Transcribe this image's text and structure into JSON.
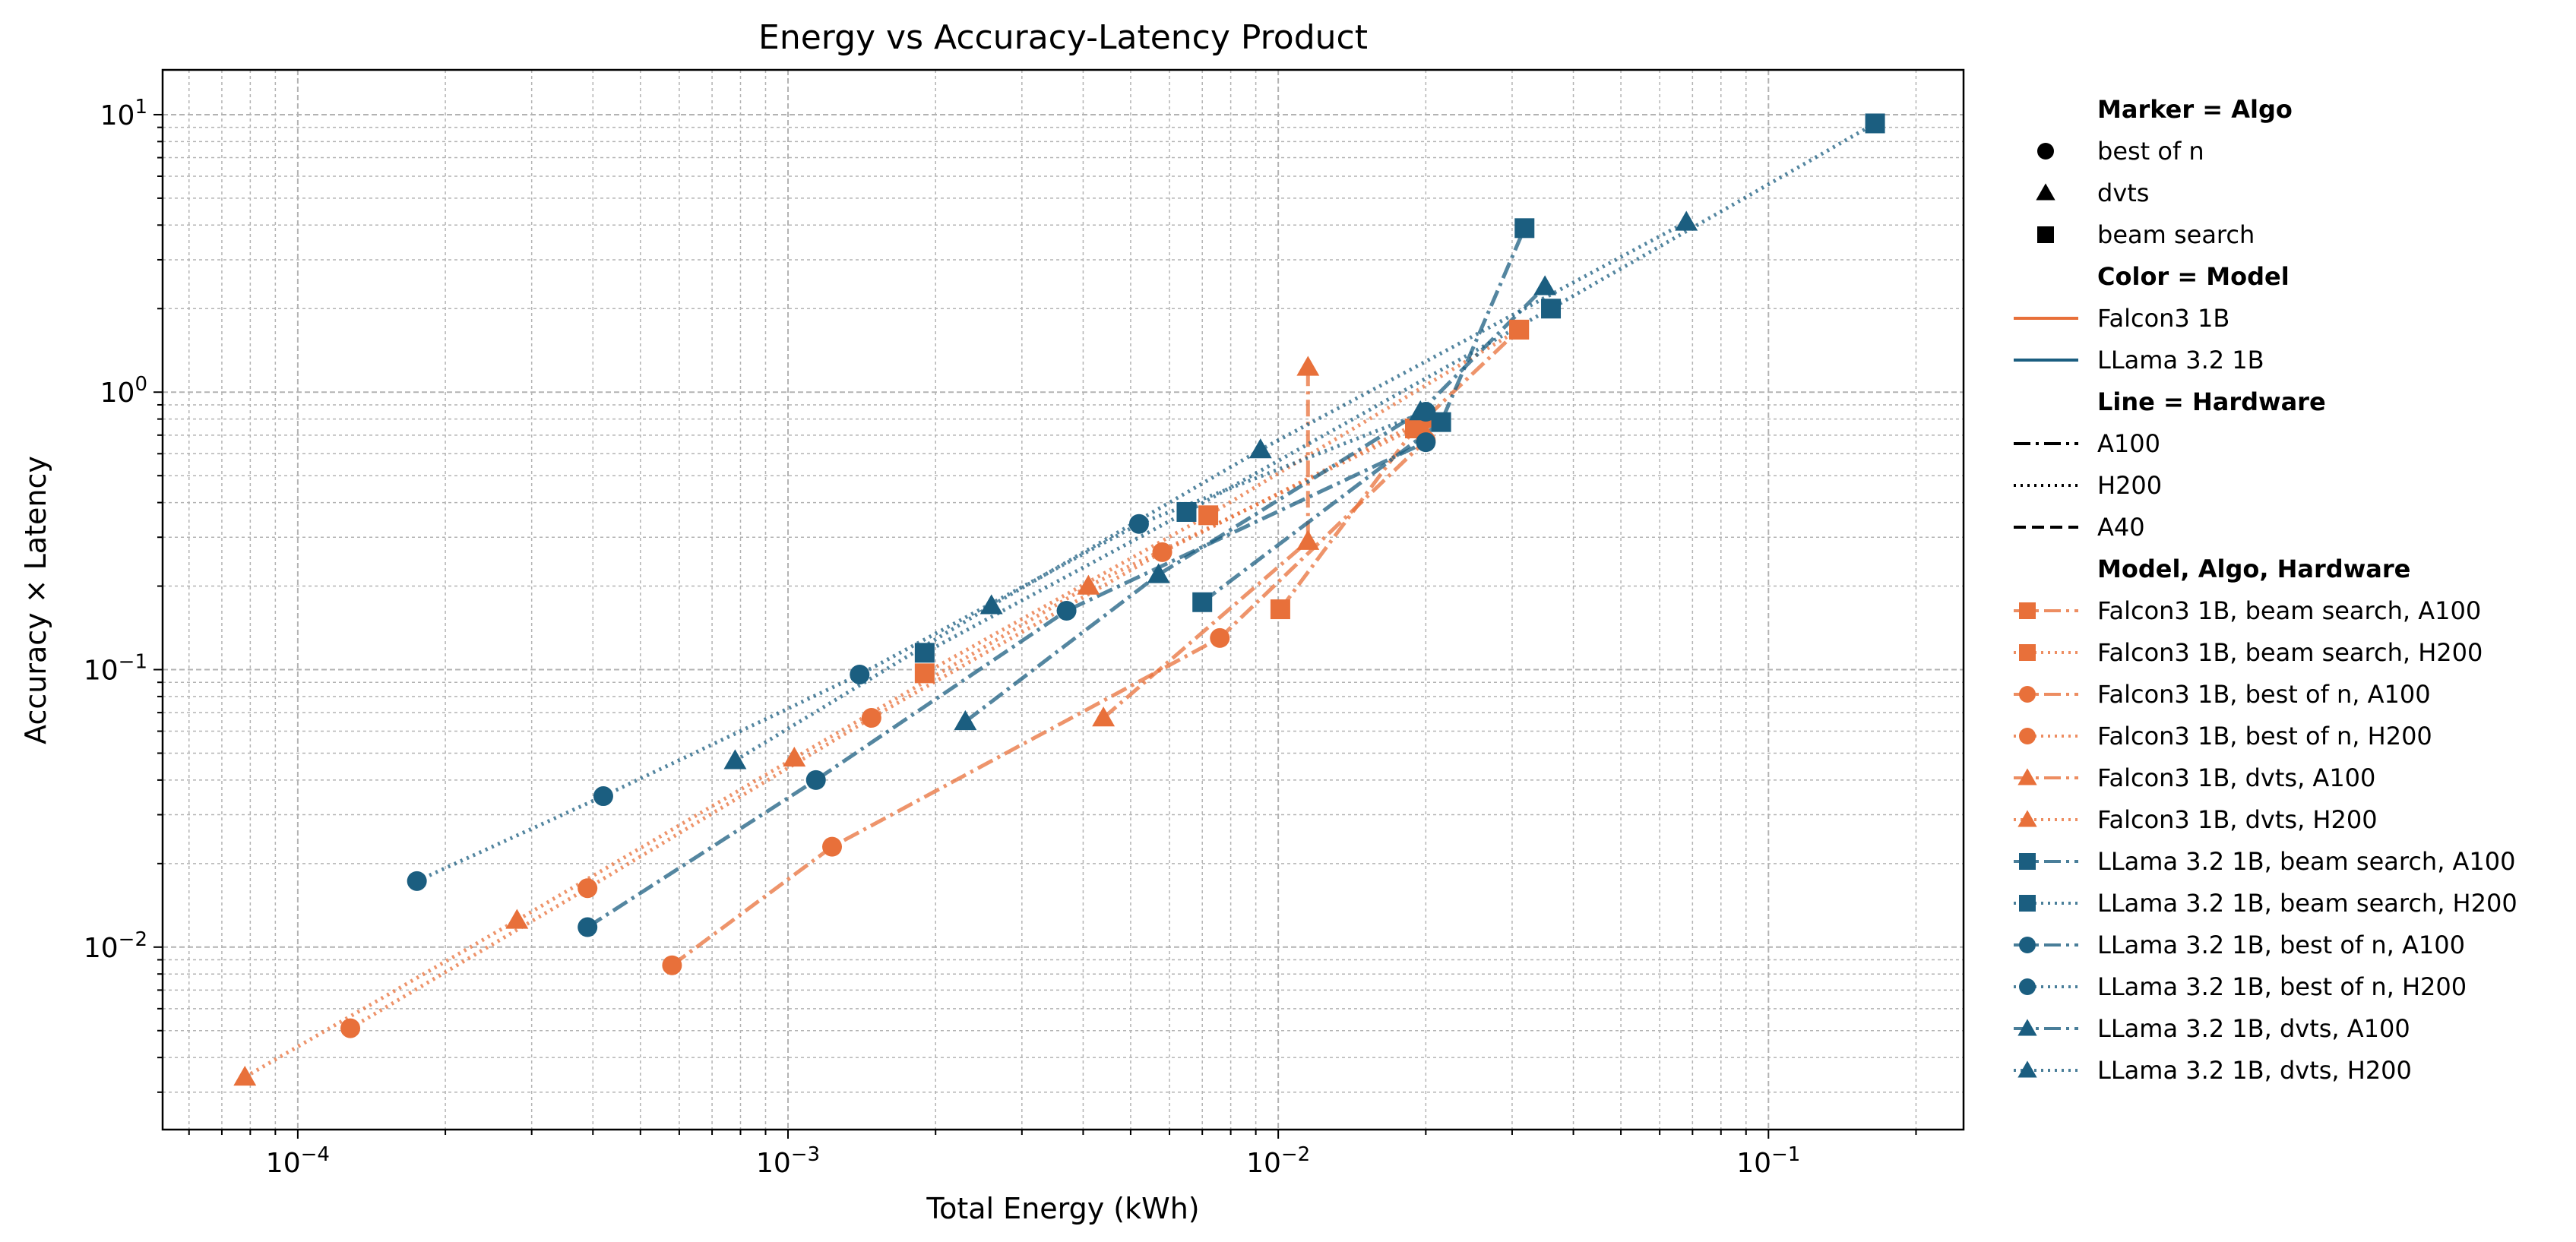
{
  "chart_data": {
    "type": "scatter",
    "title": "Energy vs Accuracy-Latency Product",
    "xlabel": "Total Energy (kWh)",
    "ylabel": "Accuracy × Latency",
    "x_scale": "log",
    "y_scale": "log",
    "xlim": [
      5.3e-05,
      0.25
    ],
    "ylim": [
      0.0022,
      14.5
    ],
    "grid": true,
    "x_ticks": [
      {
        "value": 0.0001,
        "base": "10",
        "exp": "−4"
      },
      {
        "value": 0.001,
        "base": "10",
        "exp": "−3"
      },
      {
        "value": 0.01,
        "base": "10",
        "exp": "−2"
      },
      {
        "value": 0.1,
        "base": "10",
        "exp": "−1"
      }
    ],
    "y_ticks": [
      {
        "value": 0.01,
        "base": "10",
        "exp": "−2"
      },
      {
        "value": 0.1,
        "base": "10",
        "exp": "−1"
      },
      {
        "value": 1,
        "base": "10",
        "exp": "0"
      },
      {
        "value": 10,
        "base": "10",
        "exp": "1"
      }
    ],
    "colors": {
      "Falcon3 1B": "#E8703A",
      "LLama 3.2 1B": "#1B5E80"
    },
    "legend_placement": "outside-right",
    "legend": {
      "marker_header": "Marker = Algo",
      "marker_items": [
        {
          "label": "best of n",
          "marker": "circle"
        },
        {
          "label": "dvts",
          "marker": "triangle"
        },
        {
          "label": "beam search",
          "marker": "square"
        }
      ],
      "color_header": "Color = Model",
      "color_items": [
        {
          "label": "Falcon3 1B",
          "color": "#E8703A"
        },
        {
          "label": "LLama 3.2 1B",
          "color": "#1B5E80"
        }
      ],
      "line_header": "Line = Hardware",
      "line_items": [
        {
          "label": "A100",
          "dash": "dashdot"
        },
        {
          "label": "H200",
          "dash": "dotted"
        },
        {
          "label": "A40",
          "dash": "dashed"
        }
      ],
      "combo_header": "Model, Algo, Hardware"
    },
    "series": [
      {
        "name": "Falcon3 1B, beam search, A100",
        "model": "Falcon3 1B",
        "marker": "square",
        "dash": "dashdot",
        "points": [
          [
            0.0101,
            0.165
          ],
          [
            0.019,
            0.74
          ],
          [
            0.031,
            1.68
          ]
        ]
      },
      {
        "name": "Falcon3 1B, beam search, H200",
        "model": "Falcon3 1B",
        "marker": "square",
        "dash": "dotted",
        "points": [
          [
            0.0019,
            0.097
          ],
          [
            0.0072,
            0.36
          ],
          [
            0.031,
            1.68
          ]
        ]
      },
      {
        "name": "Falcon3 1B, best of n, A100",
        "model": "Falcon3 1B",
        "marker": "circle",
        "dash": "dashdot",
        "points": [
          [
            0.00058,
            0.0086
          ],
          [
            0.00123,
            0.023
          ],
          [
            0.0076,
            0.13
          ],
          [
            0.02,
            0.67
          ]
        ]
      },
      {
        "name": "Falcon3 1B, best of n, H200",
        "model": "Falcon3 1B",
        "marker": "circle",
        "dash": "dotted",
        "points": [
          [
            0.000128,
            0.0051
          ],
          [
            0.00039,
            0.0163
          ],
          [
            0.00148,
            0.067
          ],
          [
            0.0058,
            0.265
          ],
          [
            0.02,
            0.8
          ]
        ]
      },
      {
        "name": "Falcon3 1B, dvts, A100",
        "model": "Falcon3 1B",
        "marker": "triangle",
        "dash": "dashdot",
        "points": [
          [
            0.0044,
            0.067
          ],
          [
            0.0115,
            0.29
          ],
          [
            0.0115,
            1.23
          ]
        ]
      },
      {
        "name": "Falcon3 1B, dvts, H200",
        "model": "Falcon3 1B",
        "marker": "triangle",
        "dash": "dotted",
        "points": [
          [
            7.8e-05,
            0.0034
          ],
          [
            0.00028,
            0.0125
          ],
          [
            0.00103,
            0.048
          ],
          [
            0.0041,
            0.2
          ],
          [
            0.0195,
            0.76
          ]
        ]
      },
      {
        "name": "LLama 3.2 1B, beam search, A100",
        "model": "LLama 3.2 1B",
        "marker": "square",
        "dash": "dashdot",
        "points": [
          [
            0.007,
            0.175
          ],
          [
            0.0215,
            0.78
          ],
          [
            0.0318,
            3.9
          ]
        ]
      },
      {
        "name": "LLama 3.2 1B, beam search, H200",
        "model": "LLama 3.2 1B",
        "marker": "square",
        "dash": "dotted",
        "points": [
          [
            0.0019,
            0.115
          ],
          [
            0.0065,
            0.37
          ],
          [
            0.036,
            2.0
          ],
          [
            0.165,
            9.3
          ]
        ]
      },
      {
        "name": "LLama 3.2 1B, best of n, A100",
        "model": "LLama 3.2 1B",
        "marker": "circle",
        "dash": "dashdot",
        "points": [
          [
            0.00039,
            0.0118
          ],
          [
            0.00114,
            0.04
          ],
          [
            0.0037,
            0.163
          ],
          [
            0.02,
            0.66
          ]
        ]
      },
      {
        "name": "LLama 3.2 1B, best of n, H200",
        "model": "LLama 3.2 1B",
        "marker": "circle",
        "dash": "dotted",
        "points": [
          [
            0.000175,
            0.0173
          ],
          [
            0.00042,
            0.035
          ],
          [
            0.0014,
            0.096
          ],
          [
            0.0052,
            0.335
          ],
          [
            0.02,
            0.85
          ]
        ]
      },
      {
        "name": "LLama 3.2 1B, dvts, A100",
        "model": "LLama 3.2 1B",
        "marker": "triangle",
        "dash": "dashdot",
        "points": [
          [
            0.0023,
            0.065
          ],
          [
            0.0057,
            0.22
          ],
          [
            0.0195,
            0.85
          ],
          [
            0.035,
            2.4
          ]
        ]
      },
      {
        "name": "LLama 3.2 1B, dvts, H200",
        "model": "LLama 3.2 1B",
        "marker": "triangle",
        "dash": "dotted",
        "points": [
          [
            0.00078,
            0.047
          ],
          [
            0.0026,
            0.17
          ],
          [
            0.0092,
            0.62
          ],
          [
            0.068,
            4.1
          ]
        ]
      }
    ]
  }
}
